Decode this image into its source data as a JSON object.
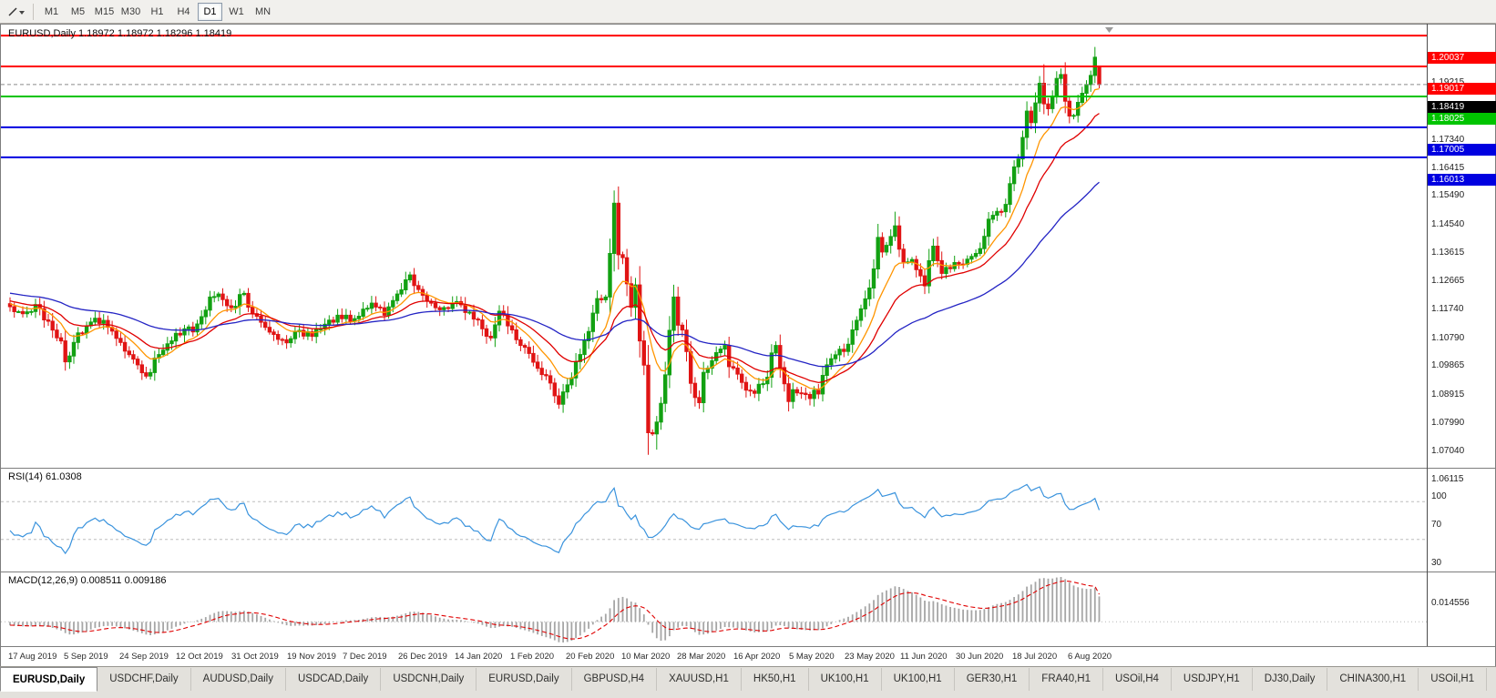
{
  "colors": {
    "up": "#12a112",
    "down": "#e01414",
    "ma_fast": "#ff9500",
    "ma_mid": "#e00000",
    "ma_slow": "#2424c4",
    "rsi": "#3a93dd",
    "macd_hist": "#a6a6a6",
    "macd_signal": "#e00000",
    "bid_badge": "#000000"
  },
  "toolbar": {
    "timeframes": [
      {
        "label": "M1",
        "active": false
      },
      {
        "label": "M5",
        "active": false
      },
      {
        "label": "M15",
        "active": false
      },
      {
        "label": "M30",
        "active": false
      },
      {
        "label": "H1",
        "active": false
      },
      {
        "label": "H4",
        "active": false
      },
      {
        "label": "D1",
        "active": true
      },
      {
        "label": "W1",
        "active": false
      },
      {
        "label": "MN",
        "active": false
      }
    ]
  },
  "chart": {
    "title": "EURUSD,Daily 1.18972 1.18972 1.18296 1.18419",
    "symbol": "EURUSD,Daily",
    "ohlc": {
      "open": "1.18972",
      "high": "1.18972",
      "low": "1.18296",
      "close": "1.18419"
    },
    "current_price": "1.18419",
    "bid_value": 1.18419,
    "levels": [
      {
        "price": "1.20037",
        "value": 1.20037,
        "color": "#ff0000"
      },
      {
        "price": "1.19017",
        "value": 1.19017,
        "color": "#ff0000"
      },
      {
        "price": "1.18025",
        "value": 1.18025,
        "color": "#00c400"
      },
      {
        "price": "1.17005",
        "value": 1.17005,
        "color": "#0000e0"
      },
      {
        "price": "1.16013",
        "value": 1.16013,
        "color": "#0000e0"
      }
    ],
    "axis_labels": [
      "1.19215",
      "1.17340",
      "1.16415",
      "1.15490",
      "1.14540",
      "1.13615",
      "1.12665",
      "1.11740",
      "1.10790",
      "1.09865",
      "1.08915",
      "1.07990",
      "1.07040",
      "1.06115"
    ]
  },
  "chart_data": {
    "type": "candlestick",
    "symbol": "EURUSD",
    "timeframe": "Daily",
    "bar_count": 257,
    "visible_price_range": [
      1.057,
      1.204
    ],
    "close_anchors": [
      [
        0,
        1.1108
      ],
      [
        3,
        1.1085
      ],
      [
        6,
        1.1115
      ],
      [
        9,
        1.106
      ],
      [
        12,
        1.0995
      ],
      [
        13,
        1.0926
      ],
      [
        15,
        1.099
      ],
      [
        18,
        1.1045
      ],
      [
        20,
        1.107
      ],
      [
        23,
        1.104
      ],
      [
        26,
        1.099
      ],
      [
        29,
        1.0935
      ],
      [
        31,
        1.089
      ],
      [
        32,
        1.0879
      ],
      [
        35,
        1.095
      ],
      [
        38,
        1.0995
      ],
      [
        41,
        1.1035
      ],
      [
        43,
        1.1025
      ],
      [
        45,
        1.1075
      ],
      [
        47,
        1.114
      ],
      [
        49,
        1.115
      ],
      [
        52,
        1.1105
      ],
      [
        55,
        1.1152
      ],
      [
        57,
        1.1085
      ],
      [
        60,
        1.104
      ],
      [
        63,
        1.1
      ],
      [
        65,
        1.0989
      ],
      [
        68,
        1.103
      ],
      [
        71,
        1.101
      ],
      [
        74,
        1.105
      ],
      [
        77,
        1.108
      ],
      [
        80,
        1.106
      ],
      [
        83,
        1.11
      ],
      [
        85,
        1.112
      ],
      [
        88,
        1.108
      ],
      [
        91,
        1.115
      ],
      [
        94,
        1.1213
      ],
      [
        96,
        1.1165
      ],
      [
        99,
        1.112
      ],
      [
        102,
        1.1105
      ],
      [
        105,
        1.1125
      ],
      [
        108,
        1.109
      ],
      [
        111,
        1.1035
      ],
      [
        113,
        1.1005
      ],
      [
        115,
        1.1093
      ],
      [
        117,
        1.1045
      ],
      [
        120,
        1.098
      ],
      [
        123,
        1.0925
      ],
      [
        126,
        1.088
      ],
      [
        129,
        1.0786
      ],
      [
        131,
        1.085
      ],
      [
        134,
        1.095
      ],
      [
        136,
        1.1026
      ],
      [
        138,
        1.1135
      ],
      [
        140,
        1.114
      ],
      [
        141,
        1.1284
      ],
      [
        142,
        1.145
      ],
      [
        143,
        1.128
      ],
      [
        144,
        1.127
      ],
      [
        145,
        1.1184
      ],
      [
        146,
        1.1106
      ],
      [
        147,
        1.118
      ],
      [
        148,
        1.0995
      ],
      [
        149,
        1.0915
      ],
      [
        150,
        1.0692
      ],
      [
        151,
        1.0688
      ],
      [
        152,
        1.0727
      ],
      [
        153,
        1.0789
      ],
      [
        154,
        1.0883
      ],
      [
        155,
        1.103
      ],
      [
        156,
        1.114
      ],
      [
        157,
        1.1047
      ],
      [
        158,
        1.1031
      ],
      [
        159,
        1.096
      ],
      [
        160,
        1.0855
      ],
      [
        161,
        1.0808
      ],
      [
        162,
        1.0791
      ],
      [
        163,
        1.0891
      ],
      [
        165,
        1.093
      ],
      [
        168,
        1.098
      ],
      [
        169,
        1.091
      ],
      [
        172,
        1.0858
      ],
      [
        175,
        1.0822
      ],
      [
        178,
        1.0875
      ],
      [
        179,
        1.0955
      ],
      [
        180,
        1.098
      ],
      [
        181,
        1.0907
      ],
      [
        183,
        1.0795
      ],
      [
        184,
        1.0834
      ],
      [
        187,
        1.0818
      ],
      [
        190,
        1.082
      ],
      [
        192,
        1.0916
      ],
      [
        194,
        1.0949
      ],
      [
        197,
        1.0984
      ],
      [
        200,
        1.1101
      ],
      [
        201,
        1.1134
      ],
      [
        203,
        1.1233
      ],
      [
        204,
        1.1337
      ],
      [
        205,
        1.1289
      ],
      [
        207,
        1.134
      ],
      [
        208,
        1.1375
      ],
      [
        209,
        1.1298
      ],
      [
        210,
        1.1256
      ],
      [
        212,
        1.1264
      ],
      [
        214,
        1.121
      ],
      [
        215,
        1.1177
      ],
      [
        216,
        1.126
      ],
      [
        217,
        1.1308
      ],
      [
        219,
        1.1218
      ],
      [
        221,
        1.1234
      ],
      [
        222,
        1.1254
      ],
      [
        224,
        1.1248
      ],
      [
        226,
        1.1274
      ],
      [
        227,
        1.1284
      ],
      [
        228,
        1.13
      ],
      [
        230,
        1.1397
      ],
      [
        231,
        1.141
      ],
      [
        234,
        1.1446
      ],
      [
        236,
        1.157
      ],
      [
        237,
        1.1596
      ],
      [
        239,
        1.1754
      ],
      [
        240,
        1.1716
      ],
      [
        242,
        1.1846
      ],
      [
        243,
        1.1778
      ],
      [
        244,
        1.1762
      ],
      [
        245,
        1.1803
      ],
      [
        246,
        1.1862
      ],
      [
        247,
        1.1875
      ],
      [
        248,
        1.1787
      ],
      [
        249,
        1.1738
      ],
      [
        250,
        1.174
      ],
      [
        251,
        1.1783
      ],
      [
        252,
        1.1813
      ],
      [
        253,
        1.1842
      ],
      [
        254,
        1.1872
      ],
      [
        255,
        1.1932
      ],
      [
        256,
        1.18419
      ]
    ],
    "overrides": {
      "142": {
        "h": 1.1492
      },
      "152": {
        "l": 1.0636
      },
      "208": {
        "h": 1.1422
      },
      "243": {
        "h": 1.1909
      },
      "255": {
        "h": 1.1966
      },
      "256": {
        "o": 1.18972,
        "h": 1.18972,
        "l": 1.18296
      }
    },
    "last_bar": {
      "open": 1.18972,
      "high": 1.18972,
      "low": 1.18296,
      "close": 1.18419
    },
    "moving_averages": [
      {
        "name": "fast",
        "period": 10,
        "type": "ema",
        "color": "#ff9500"
      },
      {
        "name": "mid",
        "period": 21,
        "type": "ema",
        "color": "#e00000"
      },
      {
        "name": "slow",
        "period": 55,
        "type": "ema",
        "color": "#2424c4"
      }
    ],
    "rsi": {
      "label": "RSI(14) 61.0308",
      "period": 14,
      "current": 61.0308,
      "axis_labels": [
        "100",
        "70",
        "30"
      ],
      "guide_levels": [
        70,
        30
      ]
    },
    "macd": {
      "label": "MACD(12,26,9) 0.008511 0.009186",
      "fast": 12,
      "slow": 26,
      "signal_period": 9,
      "current_macd": 0.008511,
      "current_signal": 0.009186,
      "axis_top": "0.014556",
      "axis_bottom": "-0.009001"
    }
  },
  "dates": [
    "17 Aug 2019",
    "5 Sep 2019",
    "24 Sep 2019",
    "12 Oct 2019",
    "31 Oct 2019",
    "19 Nov 2019",
    "7 Dec 2019",
    "26 Dec 2019",
    "14 Jan 2020",
    "1 Feb 2020",
    "20 Feb 2020",
    "10 Mar 2020",
    "28 Mar 2020",
    "16 Apr 2020",
    "5 May 2020",
    "23 May 2020",
    "11 Jun 2020",
    "30 Jun 2020",
    "18 Jul 2020",
    "6 Aug 2020"
  ],
  "tabs": [
    {
      "label": "EURUSD,Daily",
      "active": true
    },
    {
      "label": "USDCHF,Daily",
      "active": false
    },
    {
      "label": "AUDUSD,Daily",
      "active": false
    },
    {
      "label": "USDCAD,Daily",
      "active": false
    },
    {
      "label": "USDCNH,Daily",
      "active": false
    },
    {
      "label": "EURUSD,Daily",
      "active": false
    },
    {
      "label": "GBPUSD,H4",
      "active": false
    },
    {
      "label": "XAUUSD,H1",
      "active": false
    },
    {
      "label": "HK50,H1",
      "active": false
    },
    {
      "label": "UK100,H1",
      "active": false
    },
    {
      "label": "UK100,H1",
      "active": false
    },
    {
      "label": "GER30,H1",
      "active": false
    },
    {
      "label": "FRA40,H1",
      "active": false
    },
    {
      "label": "USOil,H4",
      "active": false
    },
    {
      "label": "USDJPY,H1",
      "active": false
    },
    {
      "label": "DJ30,Daily",
      "active": false
    },
    {
      "label": "CHINA300,H1",
      "active": false
    },
    {
      "label": "USOil,H1",
      "active": false
    }
  ]
}
